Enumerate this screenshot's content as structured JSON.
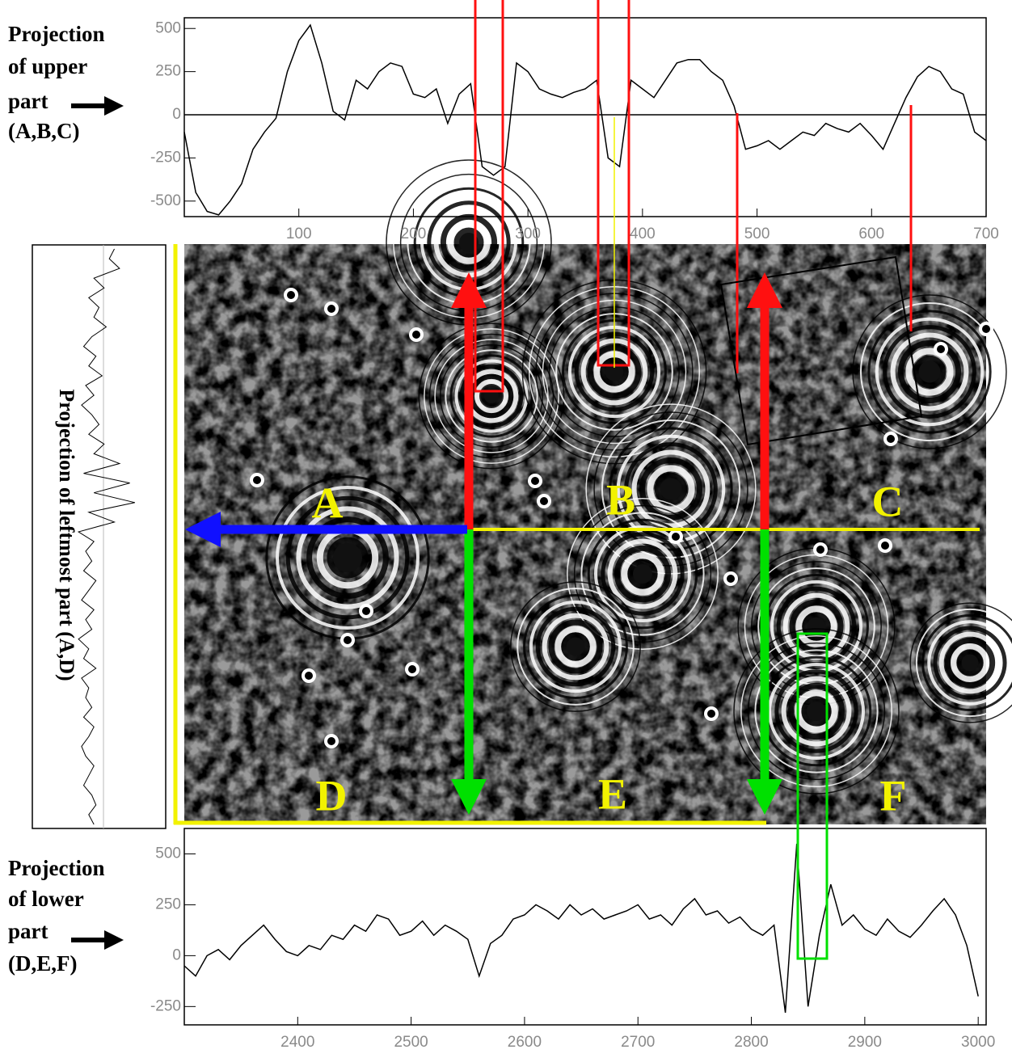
{
  "chart_data": [
    {
      "type": "line",
      "annotation": [
        "Projection",
        "of upper",
        "part",
        "(A,B,C)"
      ],
      "x": [
        0,
        10,
        20,
        30,
        40,
        50,
        60,
        70,
        80,
        90,
        100,
        110,
        120,
        130,
        140,
        150,
        160,
        170,
        180,
        190,
        200,
        210,
        220,
        230,
        240,
        250,
        260,
        270,
        280,
        290,
        300,
        310,
        320,
        330,
        340,
        350,
        360,
        370,
        380,
        390,
        400,
        410,
        420,
        430,
        440,
        450,
        460,
        470,
        480,
        490,
        500,
        510,
        520,
        530,
        540,
        550,
        560,
        570,
        580,
        590,
        600,
        610,
        620,
        630,
        640,
        650,
        660,
        670,
        680,
        690,
        700
      ],
      "values": [
        -100,
        -450,
        -560,
        -580,
        -500,
        -400,
        -200,
        -100,
        -20,
        250,
        430,
        520,
        300,
        20,
        -30,
        200,
        150,
        250,
        300,
        280,
        120,
        100,
        150,
        -50,
        120,
        180,
        -300,
        -350,
        -300,
        300,
        250,
        150,
        120,
        100,
        130,
        150,
        200,
        -250,
        -300,
        200,
        150,
        100,
        200,
        300,
        320,
        320,
        250,
        200,
        50,
        -200,
        -180,
        -150,
        -200,
        -150,
        -100,
        -120,
        -50,
        -80,
        -100,
        -50,
        -120,
        -200,
        -50,
        100,
        220,
        280,
        250,
        150,
        120,
        -100,
        -150
      ],
      "color": "#000000",
      "xlim": [
        0,
        700
      ],
      "ylim": [
        -590,
        562
      ],
      "xticks": [
        100,
        200,
        300,
        400,
        500,
        600,
        700
      ],
      "yticks": [
        -500,
        -250,
        0,
        250,
        500
      ],
      "zero_line": true
    },
    {
      "type": "line",
      "annotation": [
        "Projection",
        "of lower",
        "part",
        "(D,E,F)"
      ],
      "x": [
        2300,
        2310,
        2320,
        2330,
        2340,
        2350,
        2360,
        2370,
        2380,
        2390,
        2400,
        2410,
        2420,
        2430,
        2440,
        2450,
        2460,
        2470,
        2480,
        2490,
        2500,
        2510,
        2520,
        2530,
        2540,
        2550,
        2560,
        2570,
        2580,
        2590,
        2600,
        2610,
        2620,
        2630,
        2640,
        2650,
        2660,
        2670,
        2680,
        2690,
        2700,
        2710,
        2720,
        2730,
        2740,
        2750,
        2760,
        2770,
        2780,
        2790,
        2800,
        2810,
        2820,
        2830,
        2840,
        2850,
        2860,
        2870,
        2880,
        2890,
        2900,
        2910,
        2920,
        2930,
        2940,
        2950,
        2960,
        2970,
        2980,
        2990,
        3000
      ],
      "values": [
        -50,
        -100,
        0,
        30,
        -20,
        50,
        100,
        150,
        80,
        20,
        0,
        50,
        30,
        100,
        80,
        150,
        120,
        200,
        180,
        100,
        120,
        170,
        100,
        150,
        120,
        80,
        -100,
        60,
        100,
        180,
        200,
        250,
        220,
        180,
        250,
        200,
        230,
        180,
        200,
        220,
        250,
        180,
        200,
        150,
        230,
        280,
        200,
        220,
        160,
        190,
        130,
        100,
        150,
        -280,
        550,
        -250,
        100,
        350,
        150,
        200,
        130,
        100,
        180,
        120,
        90,
        150,
        220,
        280,
        200,
        50,
        -200
      ],
      "color": "#000000",
      "xlim": [
        2300,
        3007
      ],
      "ylim": [
        -340,
        625
      ],
      "xticks": [
        2400,
        2500,
        2600,
        2700,
        2800,
        2900,
        3000
      ],
      "yticks": [
        -250,
        0,
        250,
        500
      ],
      "zero_line": false
    },
    {
      "type": "vertical-line",
      "title": "Projection of leftmost part (A,D)",
      "values": [
        80,
        75,
        85,
        60,
        70,
        55,
        65,
        60,
        72,
        58,
        50,
        62,
        55,
        68,
        52,
        60,
        48,
        58,
        65,
        55,
        70,
        60,
        85,
        50,
        95,
        60,
        100,
        55,
        80,
        45,
        60,
        52,
        58,
        50,
        62,
        55,
        48,
        60,
        52,
        58,
        45,
        55,
        50,
        62,
        48,
        55,
        52,
        58,
        50,
        60,
        55,
        48,
        52,
        60,
        55,
        50,
        58,
        62,
        55,
        60
      ],
      "color": "#000000",
      "xlim": [
        0,
        130
      ]
    }
  ],
  "image": {
    "region_labels": [
      "A",
      "B",
      "C",
      "D",
      "E",
      "F"
    ]
  }
}
